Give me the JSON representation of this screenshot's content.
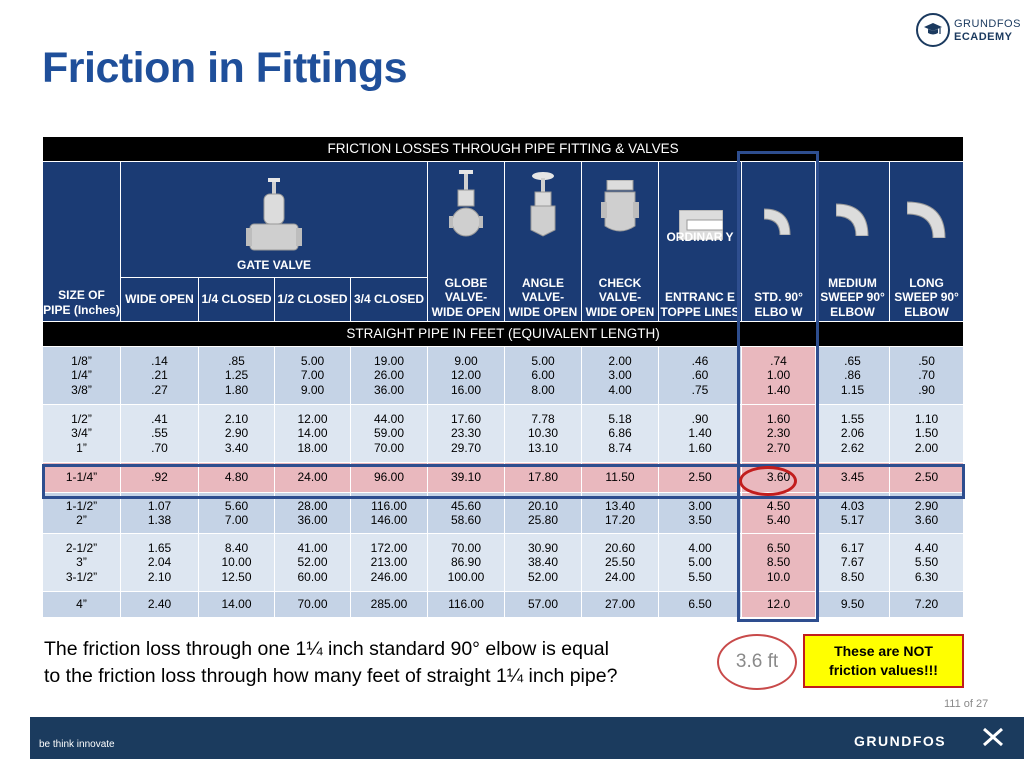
{
  "header": {
    "title": "Friction in Fittings",
    "logo_line1": "GRUNDFOS",
    "logo_line2": "ECADEMY"
  },
  "table": {
    "caption": "FRICTION LOSSES THROUGH PIPE FITTING & VALVES",
    "size_header": "SIZE OF PIPE (Inches)",
    "gate_valve": "GATE VALVE",
    "gate_subcolumns": [
      "WIDE OPEN",
      "1/4 CLOSED",
      "1/2 CLOSED",
      "3/4 CLOSED"
    ],
    "fittings": [
      "GLOBE VALVE- WIDE OPEN",
      "ANGLE VALVE- WIDE OPEN",
      "CHECK VALVE- WIDE OPEN",
      "ENTRANC E TOPPE LINES",
      "STD. 90° ELBO W",
      "MEDIUM SWEEP 90° ELBOW",
      "LONG SWEEP 90° ELBOW"
    ],
    "ordinary_overlay": "ORDINAR Y",
    "subheader": "STRAIGHT PIPE IN FEET (EQUIVALENT LENGTH)",
    "rows": [
      [
        "1/8”\n1/4”\n3/8”",
        ".14\n.21\n.27",
        ".85\n1.25\n1.80",
        "5.00\n7.00\n9.00",
        "19.00\n26.00\n36.00",
        "9.00\n12.00\n16.00",
        "5.00\n6.00\n8.00",
        "2.00\n3.00\n4.00",
        ".46\n.60\n.75",
        ".74\n1.00\n1.40",
        ".65\n.86\n1.15",
        ".50\n.70\n.90"
      ],
      [
        "1/2”\n3/4”\n1”",
        ".41\n.55\n.70",
        "2.10\n2.90\n3.40",
        "12.00\n14.00\n18.00",
        "44.00\n59.00\n70.00",
        "17.60\n23.30\n29.70",
        "7.78\n10.30\n13.10",
        "5.18\n6.86\n8.74",
        ".90\n1.40\n1.60",
        "1.60\n2.30\n2.70",
        "1.55\n2.06\n2.62",
        "1.10\n1.50\n2.00"
      ],
      [
        "1-1/4”",
        ".92",
        "4.80",
        "24.00",
        "96.00",
        "39.10",
        "17.80",
        "11.50",
        "2.50",
        "3.60",
        "3.45",
        "2.50"
      ],
      [
        "1-1/2”\n2”",
        "1.07\n1.38",
        "5.60\n7.00",
        "28.00\n36.00",
        "116.00\n146.00",
        "45.60\n58.60",
        "20.10\n25.80",
        "13.40\n17.20",
        "3.00\n3.50",
        "4.50\n5.40",
        "4.03\n5.17",
        "2.90\n3.60"
      ],
      [
        "2-1/2”\n3”\n3-1/2”",
        "1.65\n2.04\n2.10",
        "8.40\n10.00\n12.50",
        "41.00\n52.00\n60.00",
        "172.00\n213.00\n246.00",
        "70.00\n86.90\n100.00",
        "30.90\n38.40\n52.00",
        "20.60\n25.50\n24.00",
        "4.00\n5.00\n5.50",
        "6.50\n8.50\n10.0",
        "6.17\n7.67\n8.50",
        "4.40\n5.50\n6.30"
      ],
      [
        "4”",
        "2.40",
        "14.00",
        "70.00",
        "285.00",
        "116.00",
        "57.00",
        "27.00",
        "6.50",
        "12.0",
        "9.50",
        "7.20"
      ]
    ]
  },
  "question": {
    "line1": "The friction loss through one 1¼ inch standard  90° elbow is equal",
    "line2": "to the friction loss through how many feet of straight 1¼ inch pipe?"
  },
  "answer": "3.6 ft",
  "note": {
    "line1": "These are NOT",
    "line2": "friction values!!!"
  },
  "page_number": "111 of 27",
  "footer": {
    "tagline": "be think innovate",
    "brand": "GRUNDFOS"
  },
  "colors": {
    "title": "#1f4f9a",
    "header_blue": "#1b3b74",
    "row_blue": "#c5d3e6",
    "row_light": "#dde6f1",
    "highlight_pink": "#e9b8be",
    "note_yellow": "#ffff00",
    "footer": "#1b3b5e"
  },
  "icons": [
    "graduation-cap-icon",
    "gate-valve-icon",
    "globe-valve-icon",
    "angle-valve-icon",
    "check-valve-icon",
    "pipe-entrance-icon",
    "std-elbow-icon",
    "medium-sweep-elbow-icon",
    "long-sweep-elbow-icon",
    "grundfos-x-icon"
  ]
}
